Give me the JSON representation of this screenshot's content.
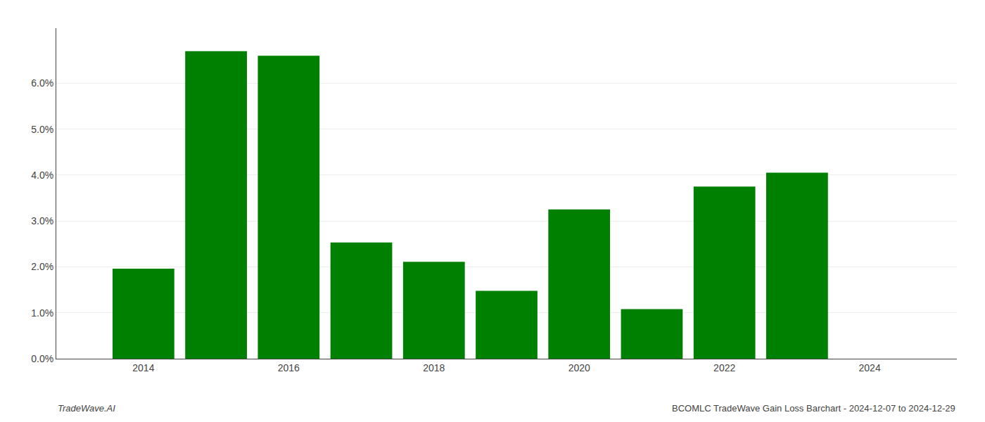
{
  "chart_data": {
    "type": "bar",
    "x": [
      2014,
      2015,
      2016,
      2017,
      2018,
      2019,
      2020,
      2021,
      2022,
      2023
    ],
    "values": [
      0.0196,
      0.067,
      0.066,
      0.0253,
      0.0211,
      0.0148,
      0.0325,
      0.0108,
      0.0375,
      0.0405
    ],
    "color": "#008000",
    "xlim": [
      2012.8,
      2025.2
    ],
    "xticks": [
      2014,
      2016,
      2018,
      2020,
      2022,
      2024
    ],
    "ylim": [
      0,
      0.072
    ],
    "yticks": [
      {
        "value": 0.0,
        "label": "0.0%"
      },
      {
        "value": 0.01,
        "label": "1.0%"
      },
      {
        "value": 0.02,
        "label": "2.0%"
      },
      {
        "value": 0.03,
        "label": "3.0%"
      },
      {
        "value": 0.04,
        "label": "4.0%"
      },
      {
        "value": 0.05,
        "label": "5.0%"
      },
      {
        "value": 0.06,
        "label": "6.0%"
      }
    ],
    "grid": true,
    "annotations": [
      "TradeWave.AI",
      "BCOMLC TradeWave Gain Loss Barchart - 2024-12-07 to 2024-12-29"
    ]
  }
}
